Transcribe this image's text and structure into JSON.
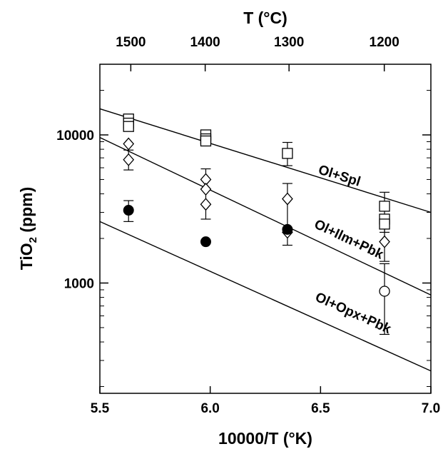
{
  "chart_data": {
    "type": "scatter",
    "x_axis": {
      "label": "10000/T (°K)",
      "range": [
        5.5,
        7.0
      ],
      "ticks": [
        5.5,
        6.0,
        6.5,
        7.0
      ],
      "tick_labels": [
        "5.5",
        "6.0",
        "6.5",
        "7.0"
      ]
    },
    "y_axis": {
      "label_main": "TiO",
      "label_sub": "2",
      "label_rest": " (ppm)",
      "scale": "log",
      "range": [
        180,
        30000
      ],
      "ticks": [
        1000,
        10000
      ],
      "tick_labels": [
        "1000",
        "10000"
      ]
    },
    "top_axis": {
      "label": "T (°C)",
      "ticks": [
        1500,
        1400,
        1300,
        1200
      ],
      "tick_labels": [
        "1500",
        "1400",
        "1300",
        "1200"
      ]
    },
    "lines": [
      {
        "label": "Ol+Spl",
        "x": [
          5.5,
          7.0
        ],
        "y": [
          15000,
          3000
        ]
      },
      {
        "label": "Ol+Ilm+Pbk",
        "x": [
          5.5,
          7.0
        ],
        "y": [
          9600,
          830
        ]
      },
      {
        "label": "Ol+Opx+Pbk",
        "x": [
          5.5,
          7.0
        ],
        "y": [
          2600,
          255
        ]
      }
    ],
    "series": [
      {
        "marker": "open-square",
        "points": [
          {
            "x": 5.63,
            "y": 12800
          },
          {
            "x": 5.63,
            "y": 12000
          },
          {
            "x": 5.63,
            "y": 11400
          },
          {
            "x": 5.98,
            "y": 10000
          },
          {
            "x": 5.98,
            "y": 9400
          },
          {
            "x": 5.98,
            "y": 9100
          },
          {
            "x": 6.35,
            "y": 7500
          },
          {
            "x": 6.79,
            "y": 3300
          },
          {
            "x": 6.79,
            "y": 2700
          },
          {
            "x": 6.79,
            "y": 2500
          }
        ]
      },
      {
        "marker": "open-diamond",
        "points": [
          {
            "x": 5.63,
            "y": 8700
          },
          {
            "x": 5.63,
            "y": 6800
          },
          {
            "x": 5.98,
            "y": 5000
          },
          {
            "x": 5.98,
            "y": 4300
          },
          {
            "x": 5.98,
            "y": 3400
          },
          {
            "x": 6.35,
            "y": 3700
          },
          {
            "x": 6.35,
            "y": 2200
          },
          {
            "x": 6.79,
            "y": 1900
          }
        ]
      },
      {
        "marker": "filled-circle",
        "points": [
          {
            "x": 5.63,
            "y": 3100
          },
          {
            "x": 5.98,
            "y": 1900
          },
          {
            "x": 6.35,
            "y": 2300
          }
        ]
      },
      {
        "marker": "open-circle",
        "points": [
          {
            "x": 6.79,
            "y": 880
          }
        ]
      }
    ],
    "error_bars": [
      {
        "x": 5.63,
        "y_low": 2600,
        "y_high": 3600
      },
      {
        "x": 5.63,
        "y_low": 5800,
        "y_high": 7900
      },
      {
        "x": 5.98,
        "y_low": 2700,
        "y_high": 5900
      },
      {
        "x": 6.35,
        "y_low": 6200,
        "y_high": 8900
      },
      {
        "x": 6.35,
        "y_low": 1800,
        "y_high": 4700
      },
      {
        "x": 6.79,
        "y_low": 2200,
        "y_high": 4100
      },
      {
        "x": 6.79,
        "y_low": 1400,
        "y_high": 2400
      },
      {
        "x": 6.79,
        "y_low": 450,
        "y_high": 1350
      }
    ]
  }
}
